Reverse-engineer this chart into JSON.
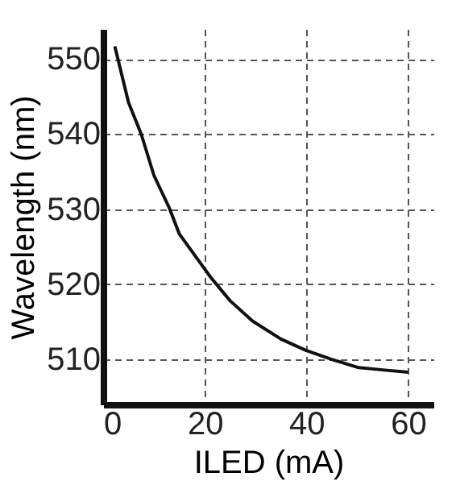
{
  "chart_data": {
    "type": "line",
    "xlabel": "ILED (mA)",
    "ylabel": "Wavelength (nm)",
    "series": [
      {
        "color": "#111111",
        "x": [
          2.3,
          5,
          7.5,
          10,
          13,
          15,
          21.2,
          25,
          29.4,
          35,
          39.9,
          45,
          50.3,
          55,
          60
        ],
        "values": [
          551.7,
          544.2,
          540,
          534.5,
          530.2,
          526.7,
          520.9,
          517.8,
          515.1,
          512.7,
          511.2,
          510,
          508.9,
          508.6,
          508.3
        ]
      }
    ],
    "xlim": [
      0,
      65
    ],
    "ylim": [
      504,
      554
    ],
    "xticks": [
      0,
      20,
      40,
      60
    ],
    "yticks": [
      510,
      520,
      530,
      540,
      550
    ],
    "grid": true,
    "line_style": "solid",
    "marker": "none"
  }
}
